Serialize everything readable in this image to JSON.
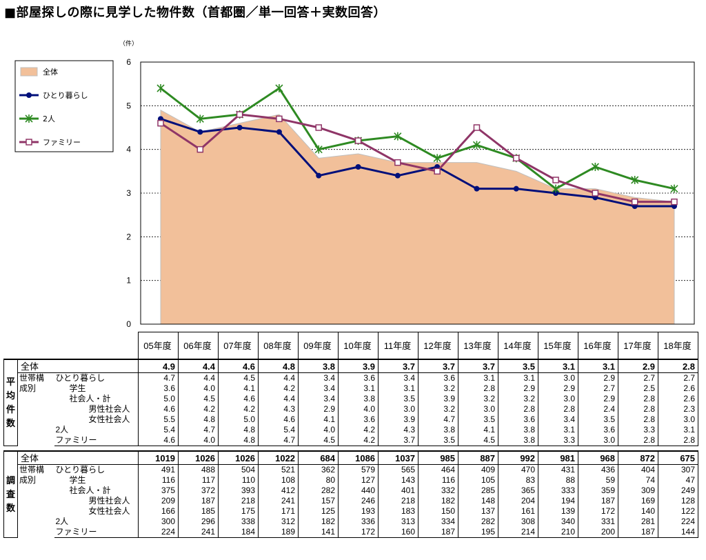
{
  "title": "■部屋探しの際に見学した物件数（首都圏／単一回答＋実数回答）",
  "chart_data": {
    "type": "line",
    "unit_label": "（件）",
    "x": [
      "05年度",
      "06年度",
      "07年度",
      "08年度",
      "09年度",
      "10年度",
      "11年度",
      "12年度",
      "13年度",
      "14年度",
      "15年度",
      "16年度",
      "17年度",
      "18年度"
    ],
    "ylim": [
      0,
      6
    ],
    "yticks": [
      "0",
      "1",
      "2",
      "3",
      "4",
      "5",
      "6"
    ],
    "grid": true,
    "legend_position": "top-left",
    "series": [
      {
        "name": "全体",
        "kind": "area",
        "color": "#f2c09a",
        "values": [
          4.9,
          4.4,
          4.6,
          4.8,
          3.8,
          3.9,
          3.7,
          3.7,
          3.7,
          3.5,
          3.1,
          3.1,
          2.9,
          2.8
        ]
      },
      {
        "name": "ひとり暮らし",
        "kind": "line",
        "marker": "circle",
        "color": "#000f7a",
        "values": [
          4.7,
          4.4,
          4.5,
          4.4,
          3.4,
          3.6,
          3.4,
          3.6,
          3.1,
          3.1,
          3.0,
          2.9,
          2.7,
          2.7
        ]
      },
      {
        "name": "2人",
        "kind": "line",
        "marker": "star",
        "color": "#2e8a22",
        "values": [
          5.4,
          4.7,
          4.8,
          5.4,
          4.0,
          4.2,
          4.3,
          3.8,
          4.1,
          3.8,
          3.1,
          3.6,
          3.3,
          3.1
        ]
      },
      {
        "name": "ファミリー",
        "kind": "line",
        "marker": "square",
        "color": "#8f3567",
        "values": [
          4.6,
          4.0,
          4.8,
          4.7,
          4.5,
          4.2,
          3.7,
          3.5,
          4.5,
          3.8,
          3.3,
          3.0,
          2.8,
          2.8
        ]
      }
    ]
  },
  "table": {
    "years": [
      "05年度",
      "06年度",
      "07年度",
      "08年度",
      "09年度",
      "10年度",
      "11年度",
      "12年度",
      "13年度",
      "14年度",
      "15年度",
      "16年度",
      "17年度",
      "18年度"
    ],
    "avg_side_label": "平均件数",
    "cnt_side_label": "調査数",
    "group_label": "世帯構成別",
    "avg": {
      "total_label": "全体",
      "total": [
        "4.9",
        "4.4",
        "4.6",
        "4.8",
        "3.8",
        "3.9",
        "3.7",
        "3.7",
        "3.7",
        "3.5",
        "3.1",
        "3.1",
        "2.9",
        "2.8"
      ],
      "rows": [
        {
          "label": "ひとり暮らし",
          "indent": 0,
          "values": [
            "4.7",
            "4.4",
            "4.5",
            "4.4",
            "3.4",
            "3.6",
            "3.4",
            "3.6",
            "3.1",
            "3.1",
            "3.0",
            "2.9",
            "2.7",
            "2.7"
          ]
        },
        {
          "label": "学生",
          "indent": 1,
          "values": [
            "3.6",
            "4.0",
            "4.1",
            "4.2",
            "3.4",
            "3.1",
            "3.1",
            "3.2",
            "2.8",
            "2.9",
            "2.9",
            "2.7",
            "2.5",
            "2.6"
          ]
        },
        {
          "label": "社会人・計",
          "indent": 1,
          "values": [
            "5.0",
            "4.5",
            "4.6",
            "4.4",
            "3.4",
            "3.8",
            "3.5",
            "3.9",
            "3.2",
            "3.2",
            "3.0",
            "2.9",
            "2.8",
            "2.6"
          ]
        },
        {
          "label": "男性社会人",
          "indent": 2,
          "values": [
            "4.6",
            "4.2",
            "4.2",
            "4.3",
            "2.9",
            "4.0",
            "3.0",
            "3.2",
            "3.0",
            "2.8",
            "2.8",
            "2.4",
            "2.8",
            "2.3"
          ]
        },
        {
          "label": "女性社会人",
          "indent": 2,
          "values": [
            "5.5",
            "4.8",
            "5.0",
            "4.6",
            "4.1",
            "3.6",
            "3.9",
            "4.7",
            "3.5",
            "3.6",
            "3.4",
            "3.5",
            "2.8",
            "3.0"
          ]
        },
        {
          "label": "2人",
          "indent": 0,
          "values": [
            "5.4",
            "4.7",
            "4.8",
            "5.4",
            "4.0",
            "4.2",
            "4.3",
            "3.8",
            "4.1",
            "3.8",
            "3.1",
            "3.6",
            "3.3",
            "3.1"
          ]
        },
        {
          "label": "ファミリー",
          "indent": 0,
          "values": [
            "4.6",
            "4.0",
            "4.8",
            "4.7",
            "4.5",
            "4.2",
            "3.7",
            "3.5",
            "4.5",
            "3.8",
            "3.3",
            "3.0",
            "2.8",
            "2.8"
          ]
        }
      ]
    },
    "cnt": {
      "total_label": "全体",
      "total": [
        "1019",
        "1026",
        "1026",
        "1022",
        "684",
        "1086",
        "1037",
        "985",
        "887",
        "992",
        "981",
        "968",
        "872",
        "675"
      ],
      "rows": [
        {
          "label": "ひとり暮らし",
          "indent": 0,
          "values": [
            "491",
            "488",
            "504",
            "521",
            "362",
            "579",
            "565",
            "464",
            "409",
            "470",
            "431",
            "436",
            "404",
            "307"
          ]
        },
        {
          "label": "学生",
          "indent": 1,
          "values": [
            "116",
            "117",
            "110",
            "108",
            "80",
            "127",
            "143",
            "116",
            "105",
            "83",
            "88",
            "59",
            "74",
            "47"
          ]
        },
        {
          "label": "社会人・計",
          "indent": 1,
          "values": [
            "375",
            "372",
            "393",
            "412",
            "282",
            "440",
            "401",
            "332",
            "285",
            "365",
            "333",
            "359",
            "309",
            "249"
          ]
        },
        {
          "label": "男性社会人",
          "indent": 2,
          "values": [
            "209",
            "187",
            "218",
            "241",
            "157",
            "246",
            "218",
            "182",
            "148",
            "204",
            "194",
            "187",
            "169",
            "128"
          ]
        },
        {
          "label": "女性社会人",
          "indent": 2,
          "values": [
            "166",
            "185",
            "175",
            "171",
            "125",
            "193",
            "183",
            "150",
            "137",
            "161",
            "139",
            "172",
            "140",
            "122"
          ]
        },
        {
          "label": "2人",
          "indent": 0,
          "values": [
            "300",
            "296",
            "338",
            "312",
            "182",
            "336",
            "313",
            "334",
            "282",
            "308",
            "340",
            "331",
            "281",
            "224"
          ]
        },
        {
          "label": "ファミリー",
          "indent": 0,
          "values": [
            "224",
            "241",
            "184",
            "189",
            "141",
            "172",
            "160",
            "187",
            "195",
            "214",
            "210",
            "200",
            "187",
            "144"
          ]
        }
      ]
    }
  }
}
